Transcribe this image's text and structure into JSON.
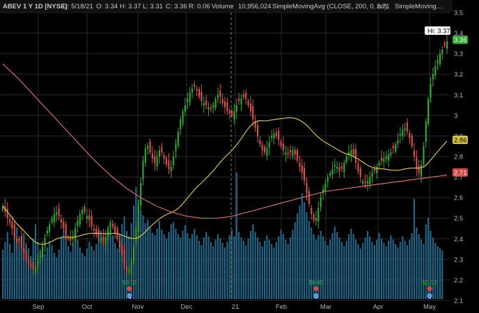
{
  "header": {
    "symbol": "ABEV 1 Y 1D [NYSE]",
    "date": "D: 5/18/21",
    "open": "O: 3.34",
    "high": "H: 3.37",
    "low": "L: 3.31",
    "close": "C: 3.36",
    "range": "R: 0.06",
    "volume_label": "Volume",
    "volume_value": "10,956,024",
    "sma200_label": "SimpleMovingAvg (CLOSE, 200, 0, no)",
    "sma200_value": "2.71",
    "sma50_label": "SimpleMoving..."
  },
  "chart_data": {
    "type": "candlestick",
    "x_tick_labels": [
      "Sep",
      "Oct",
      "Nov",
      "Dec",
      "21",
      "Feb",
      "Mar",
      "Apr",
      "May"
    ],
    "y_tick_labels": [
      "3.5",
      "3.4",
      "3.3",
      "3.2",
      "3.1",
      "3",
      "2.9",
      "2.8",
      "2.7",
      "2.6",
      "2.5",
      "2.4",
      "2.3",
      "2.2",
      "2.1"
    ],
    "ylim": [
      2.1,
      3.5
    ],
    "hi_label": "Hi: 3.37",
    "last_price_label": "3.36",
    "sma50_value_label": "2.86",
    "sma200_value_label": "2.71",
    "dividend_labels": [
      "$0.03",
      "$0.05",
      "$0.02"
    ],
    "dividend_marker_labels": [
      "Q",
      "Q",
      "Q"
    ],
    "colors": {
      "up": "#2fae2f",
      "down": "#d9534f",
      "volume": "#1e6a8e",
      "sma50": "#d8c23a",
      "sma200": "#d86a6a",
      "grid": "#2a2a2a",
      "last_tag": "#2fae2f",
      "sma50_tag": "#d8c23a",
      "sma200_tag": "#d04848",
      "dividend": "#2fae2f"
    },
    "closes": [
      2.56,
      2.53,
      2.5,
      2.48,
      2.45,
      2.41,
      2.38,
      2.39,
      2.36,
      2.33,
      2.3,
      2.28,
      2.27,
      2.25,
      2.26,
      2.29,
      2.32,
      2.36,
      2.4,
      2.44,
      2.47,
      2.5,
      2.52,
      2.53,
      2.51,
      2.48,
      2.45,
      2.42,
      2.4,
      2.39,
      2.41,
      2.45,
      2.49,
      2.52,
      2.54,
      2.53,
      2.51,
      2.49,
      2.46,
      2.44,
      2.42,
      2.41,
      2.4,
      2.39,
      2.41,
      2.44,
      2.47,
      2.46,
      2.43,
      2.4,
      2.36,
      2.32,
      2.27,
      2.24,
      2.25,
      2.29,
      2.36,
      2.45,
      2.56,
      2.67,
      2.78,
      2.84,
      2.85,
      2.82,
      2.79,
      2.77,
      2.8,
      2.83,
      2.82,
      2.79,
      2.76,
      2.74,
      2.75,
      2.8,
      2.86,
      2.92,
      2.98,
      3.02,
      3.05,
      3.08,
      3.11,
      3.13,
      3.14,
      3.12,
      3.09,
      3.07,
      3.06,
      3.05,
      3.04,
      3.03,
      3.05,
      3.08,
      3.1,
      3.09,
      3.06,
      3.04,
      3.02,
      3.01,
      3.0,
      3.02,
      3.05,
      3.07,
      3.08,
      3.09,
      3.08,
      3.05,
      3.02,
      2.98,
      2.94,
      2.9,
      2.86,
      2.83,
      2.82,
      2.84,
      2.87,
      2.9,
      2.91,
      2.9,
      2.88,
      2.85,
      2.83,
      2.82,
      2.81,
      2.82,
      2.83,
      2.81,
      2.78,
      2.75,
      2.72,
      2.68,
      2.62,
      2.57,
      2.52,
      2.49,
      2.5,
      2.55,
      2.6,
      2.64,
      2.67,
      2.7,
      2.72,
      2.74,
      2.76,
      2.75,
      2.73,
      2.74,
      2.77,
      2.8,
      2.82,
      2.83,
      2.81,
      2.77,
      2.73,
      2.7,
      2.68,
      2.67,
      2.68,
      2.7,
      2.72,
      2.73,
      2.75,
      2.77,
      2.78,
      2.79,
      2.8,
      2.81,
      2.82,
      2.84,
      2.86,
      2.88,
      2.91,
      2.93,
      2.94,
      2.92,
      2.89,
      2.85,
      2.8,
      2.74,
      2.72,
      2.76,
      2.85,
      2.97,
      3.08,
      3.15,
      3.2,
      3.24,
      3.27,
      3.3,
      3.32,
      3.34,
      3.36
    ],
    "volumes": [
      4.5,
      5.2,
      6.1,
      5.0,
      4.2,
      5.8,
      6.5,
      5.5,
      4.8,
      6.0,
      5.1,
      4.6,
      3.9,
      5.5,
      6.8,
      5.2,
      4.4,
      5.0,
      4.1,
      4.7,
      5.3,
      4.9,
      4.2,
      3.8,
      4.5,
      5.6,
      6.3,
      5.9,
      4.8,
      4.3,
      5.1,
      6.0,
      5.4,
      4.7,
      4.2,
      3.9,
      4.6,
      5.2,
      4.8,
      4.4,
      5.0,
      5.7,
      6.2,
      5.3,
      4.9,
      6.5,
      7.0,
      5.8,
      5.1,
      4.6,
      5.9,
      6.8,
      7.5,
      6.2,
      5.7,
      6.9,
      8.5,
      10.2,
      9.0,
      8.1,
      7.6,
      6.9,
      7.2,
      6.5,
      6.0,
      5.8,
      6.4,
      7.1,
      6.3,
      5.9,
      5.5,
      6.1,
      6.8,
      7.0,
      6.4,
      5.9,
      5.6,
      6.2,
      6.7,
      6.0,
      5.5,
      5.9,
      6.4,
      5.8,
      5.3,
      4.9,
      5.6,
      6.1,
      5.7,
      5.2,
      4.8,
      5.4,
      5.9,
      5.5,
      5.1,
      4.7,
      5.2,
      5.8,
      6.3,
      5.7,
      11.5,
      6.1,
      5.6,
      5.3,
      4.9,
      5.5,
      6.2,
      6.8,
      6.1,
      5.6,
      5.2,
      4.8,
      5.3,
      5.8,
      5.4,
      5.0,
      4.7,
      5.2,
      5.7,
      6.3,
      5.9,
      5.4,
      5.0,
      5.6,
      6.3,
      7.0,
      7.8,
      8.5,
      9.6,
      8.8,
      7.9,
      7.1,
      6.5,
      5.9,
      5.4,
      5.8,
      6.2,
      5.7,
      5.3,
      4.9,
      5.4,
      6.0,
      6.6,
      6.1,
      5.6,
      5.2,
      4.8,
      5.3,
      5.9,
      6.4,
      5.9,
      5.4,
      5.0,
      4.6,
      5.1,
      5.6,
      6.2,
      5.7,
      5.2,
      4.9,
      5.4,
      6.0,
      5.5,
      5.1,
      4.8,
      5.3,
      5.8,
      5.4,
      5.0,
      4.7,
      5.2,
      5.7,
      5.3,
      4.9,
      5.4,
      6.0,
      9.1,
      6.5,
      5.9,
      5.4,
      5.0,
      6.8,
      7.4,
      6.2,
      5.6,
      5.1,
      4.8,
      4.6,
      4.4
    ]
  }
}
